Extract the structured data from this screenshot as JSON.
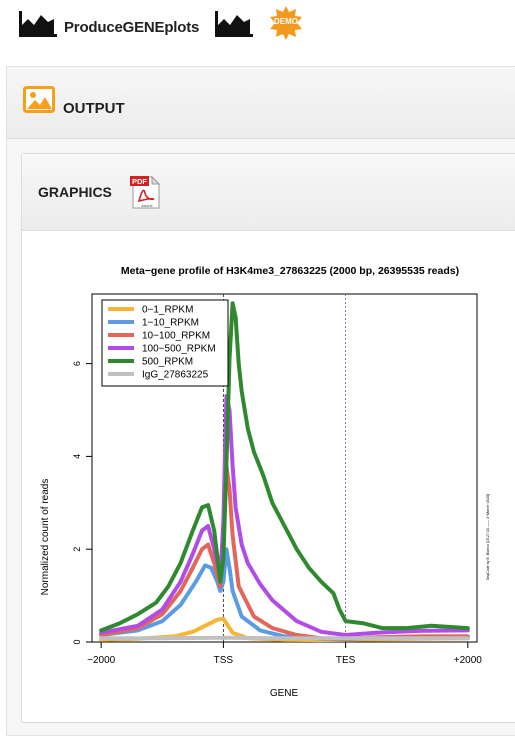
{
  "app": {
    "title": "ProduceGENEplots",
    "badge": "DEMO"
  },
  "output": {
    "title": "OUTPUT"
  },
  "graphics": {
    "title": "GRAPHICS",
    "download_icon": "pdf-icon",
    "download_label": "PDF",
    "download_sublabel": "Adobe"
  },
  "colors": {
    "brand_orange": "#f6a01a",
    "demo_badge": "#f39a1e"
  },
  "chart_data": {
    "type": "line",
    "title": "Meta−gene profile of H3K4me3_27863225 (2000 bp, 26395535 reads)",
    "xlabel": "GENE",
    "ylabel": "Normalized count of reads",
    "x_ticks": [
      "−2000",
      "TSS",
      "TES",
      "+2000"
    ],
    "y_ticks": [
      "0",
      "2",
      "4",
      "6"
    ],
    "ylim": [
      0,
      7.5
    ],
    "x_positions": [
      0,
      2000,
      4000,
      6000
    ],
    "vertical_markers": [
      "TSS",
      "TES"
    ],
    "side_note": "SeqCode by E. Blanco [15:27:33 —— 3−March−2020]",
    "legend_position": "top-left",
    "series": [
      {
        "name": "0−1_RPKM",
        "color": "#f6b536",
        "x": [
          0,
          600,
          1200,
          1500,
          1700,
          1900,
          2000,
          2050,
          2150,
          2400,
          3000,
          3600,
          4000,
          4600,
          5200,
          6000
        ],
        "y": [
          0.05,
          0.07,
          0.12,
          0.22,
          0.35,
          0.48,
          0.5,
          0.4,
          0.2,
          0.08,
          0.05,
          0.04,
          0.05,
          0.06,
          0.07,
          0.08
        ]
      },
      {
        "name": "1−10_RPKM",
        "color": "#5b9be6",
        "x": [
          0,
          600,
          1000,
          1300,
          1550,
          1700,
          1800,
          1900,
          1950,
          2000,
          2050,
          2100,
          2150,
          2300,
          2600,
          3000,
          3600,
          4000,
          4500,
          5200,
          6000
        ],
        "y": [
          0.15,
          0.25,
          0.45,
          0.8,
          1.3,
          1.65,
          1.6,
          1.3,
          1.1,
          1.3,
          2.0,
          1.6,
          1.1,
          0.55,
          0.25,
          0.12,
          0.07,
          0.06,
          0.1,
          0.12,
          0.12
        ]
      },
      {
        "name": "10−100_RPKM",
        "color": "#e2665a",
        "x": [
          0,
          600,
          1000,
          1300,
          1500,
          1650,
          1750,
          1850,
          1950,
          2000,
          2050,
          2100,
          2150,
          2250,
          2500,
          2800,
          3200,
          3600,
          4000,
          4500,
          5200,
          6000
        ],
        "y": [
          0.15,
          0.3,
          0.6,
          1.1,
          1.6,
          2.0,
          2.1,
          1.7,
          1.2,
          2.3,
          3.8,
          3.3,
          2.3,
          1.2,
          0.55,
          0.3,
          0.15,
          0.08,
          0.07,
          0.1,
          0.12,
          0.12
        ]
      },
      {
        "name": "100−500_RPKM",
        "color": "#b24ce6",
        "x": [
          0,
          600,
          1000,
          1300,
          1500,
          1650,
          1750,
          1850,
          1950,
          2000,
          2050,
          2100,
          2150,
          2200,
          2300,
          2400,
          2600,
          2800,
          3200,
          3600,
          4000,
          4500,
          5200,
          6000
        ],
        "y": [
          0.2,
          0.35,
          0.7,
          1.3,
          1.9,
          2.4,
          2.5,
          2.0,
          1.4,
          2.6,
          5.3,
          5.0,
          3.8,
          2.9,
          2.1,
          1.7,
          1.25,
          0.9,
          0.45,
          0.22,
          0.15,
          0.2,
          0.24,
          0.25
        ]
      },
      {
        "name": "500_RPKM",
        "color": "#2f8a2f",
        "x": [
          0,
          300,
          600,
          900,
          1100,
          1300,
          1500,
          1650,
          1750,
          1850,
          1950,
          2000,
          2050,
          2100,
          2150,
          2200,
          2250,
          2300,
          2400,
          2500,
          2650,
          2800,
          3000,
          3200,
          3400,
          3600,
          3800,
          3900,
          4000,
          4300,
          4600,
          5000,
          5400,
          6000
        ],
        "y": [
          0.25,
          0.4,
          0.6,
          0.85,
          1.2,
          1.7,
          2.4,
          2.9,
          2.95,
          2.4,
          1.3,
          1.8,
          3.8,
          6.1,
          7.3,
          7.0,
          6.0,
          5.4,
          4.6,
          4.1,
          3.6,
          3.0,
          2.5,
          2.0,
          1.6,
          1.3,
          1.05,
          0.7,
          0.45,
          0.4,
          0.3,
          0.3,
          0.35,
          0.3
        ]
      },
      {
        "name": "IgG_27863225",
        "color": "#c0c0c0",
        "x": [
          0,
          1000,
          2000,
          3000,
          4000,
          5000,
          6000
        ],
        "y": [
          0.08,
          0.08,
          0.09,
          0.08,
          0.08,
          0.08,
          0.08
        ]
      }
    ]
  }
}
